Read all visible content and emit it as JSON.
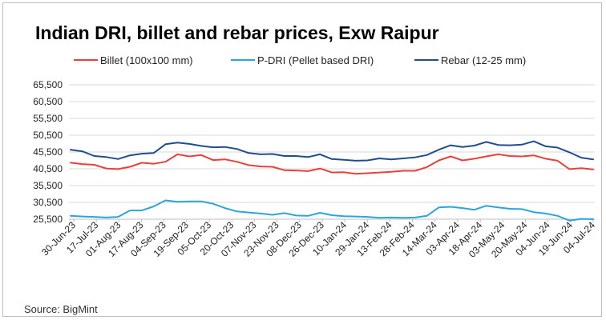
{
  "chart_data": {
    "type": "line",
    "title": "Indian DRI, billet and rebar prices, Exw Raipur",
    "xlabel": "",
    "ylabel": "",
    "ylim": [
      25500,
      65500
    ],
    "yticks": [
      "65,500",
      "60,500",
      "55,500",
      "50,500",
      "45,500",
      "40,500",
      "35,500",
      "30,500",
      "25,500"
    ],
    "ytick_values": [
      65500,
      60500,
      55500,
      50500,
      45500,
      40500,
      35500,
      30500,
      25500
    ],
    "x_labels": [
      "30-Jun-23",
      "17-Jul-23",
      "01-Aug-23",
      "17-Aug-23",
      "04-Sep-23",
      "19-Sep-23",
      "05-Oct-23",
      "20-Oct-23",
      "07-Nov-23",
      "23-Nov-23",
      "08-Dec-23",
      "26-Dec-23",
      "10-Jan-24",
      "29-Jan-24",
      "13-Feb-24",
      "28-Feb-24",
      "14-Mar-24",
      "03-Apr-24",
      "18-Apr-24",
      "03-May-24",
      "20-May-24",
      "04-Jun-24",
      "19-Jun-24",
      "04-Jul-24"
    ],
    "grid": true,
    "legend": "top",
    "series": [
      {
        "name": "Billet (100x100 mm)",
        "color": "#e8413c",
        "values": [
          42300,
          41900,
          41700,
          40600,
          40400,
          41100,
          42300,
          42000,
          42600,
          44800,
          44200,
          44600,
          43100,
          43300,
          42600,
          41600,
          41200,
          41100,
          40100,
          40000,
          39800,
          40600,
          39400,
          39500,
          39000,
          39200,
          39400,
          39600,
          39900,
          39900,
          41000,
          43000,
          44200,
          43000,
          43500,
          44200,
          44800,
          44300,
          44200,
          44500,
          43500,
          42900,
          40400,
          40700,
          40300
        ]
      },
      {
        "name": "P-DRI (Pellet based DRI)",
        "color": "#2aa5de",
        "values": [
          26500,
          26300,
          26200,
          26000,
          26200,
          28100,
          28100,
          29300,
          31100,
          30700,
          30800,
          30800,
          30100,
          28800,
          27800,
          27500,
          27200,
          26800,
          27300,
          26600,
          26500,
          27400,
          26700,
          26400,
          26300,
          26200,
          25900,
          26000,
          25900,
          26000,
          26500,
          29000,
          29200,
          28800,
          28300,
          29500,
          29000,
          28600,
          28500,
          27600,
          27200,
          26500,
          25100,
          25600,
          25500
        ]
      },
      {
        "name": "Rebar (12-25 mm)",
        "color": "#1f4e8c",
        "values": [
          46200,
          45700,
          44300,
          44000,
          43400,
          44500,
          45000,
          45200,
          47800,
          48300,
          47900,
          47300,
          46900,
          47000,
          46400,
          45200,
          44800,
          44900,
          44300,
          44300,
          44000,
          44800,
          43400,
          43200,
          42900,
          43000,
          43600,
          43300,
          43600,
          43900,
          44600,
          46200,
          47500,
          47000,
          47400,
          48500,
          47600,
          47500,
          47700,
          48700,
          47200,
          46800,
          45400,
          43800,
          43300
        ]
      }
    ]
  },
  "source": "Source: BigMint"
}
